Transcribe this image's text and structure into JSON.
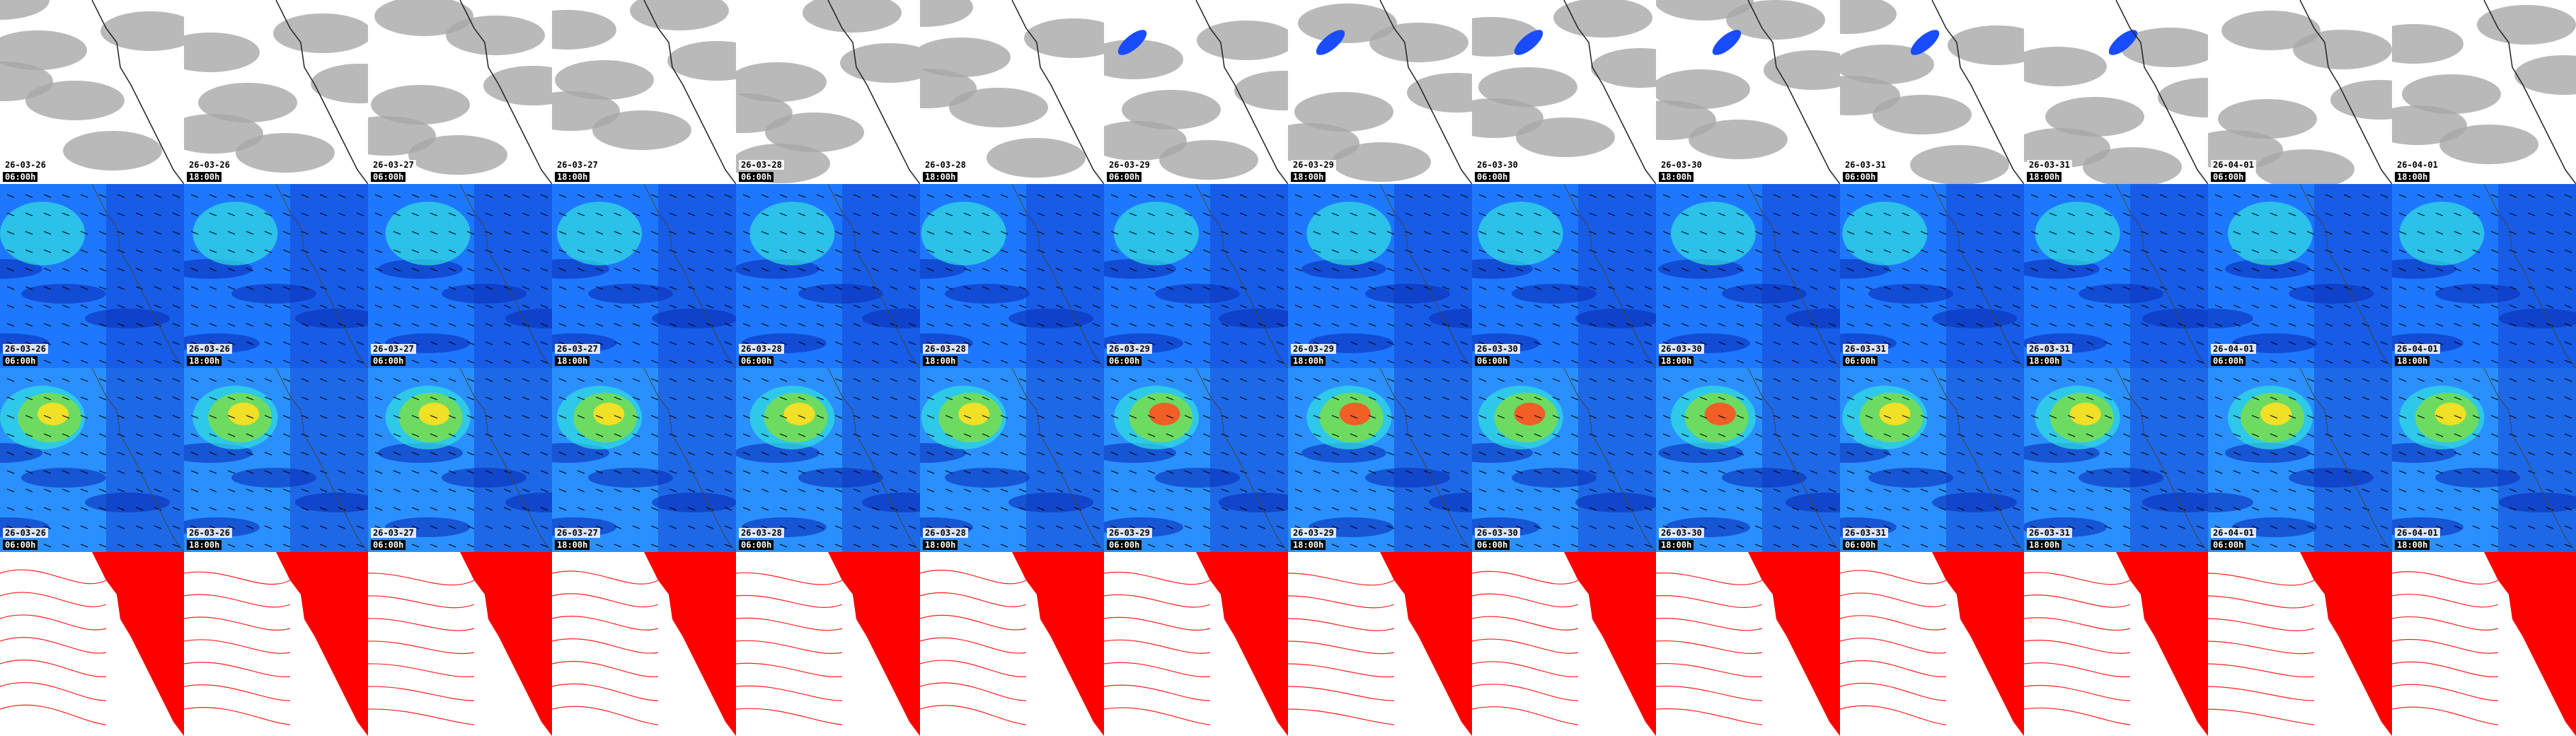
{
  "columns": [
    {
      "date": "26-03-26",
      "time": "06:00h"
    },
    {
      "date": "26-03-26",
      "time": "18:00h"
    },
    {
      "date": "26-03-27",
      "time": "06:00h"
    },
    {
      "date": "26-03-27",
      "time": "18:00h"
    },
    {
      "date": "26-03-28",
      "time": "06:00h"
    },
    {
      "date": "26-03-28",
      "time": "18:00h"
    },
    {
      "date": "26-03-29",
      "time": "06:00h"
    },
    {
      "date": "26-03-29",
      "time": "18:00h"
    },
    {
      "date": "26-03-30",
      "time": "06:00h"
    },
    {
      "date": "26-03-30",
      "time": "18:00h"
    },
    {
      "date": "26-03-31",
      "time": "06:00h"
    },
    {
      "date": "26-03-31",
      "time": "18:00h"
    },
    {
      "date": "26-04-01",
      "time": "06:00h"
    },
    {
      "date": "26-04-01",
      "time": "18:00h"
    }
  ]
}
